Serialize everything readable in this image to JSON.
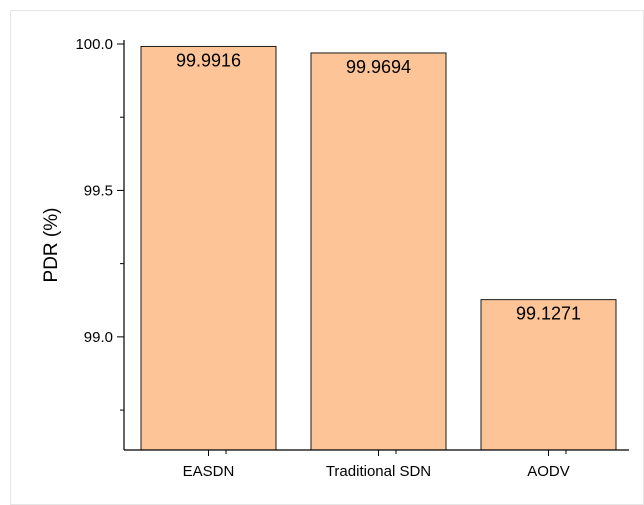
{
  "chart_data": {
    "type": "bar",
    "title": "",
    "xlabel": "",
    "ylabel": "PDR (%)",
    "categories": [
      "EASDN",
      "Traditional SDN",
      "AODV"
    ],
    "values": [
      99.9916,
      99.9694,
      99.1271
    ],
    "data_labels": [
      "99.9916",
      "99.9694",
      "99.1271"
    ],
    "ylim": [
      98.6,
      100.0
    ],
    "yticks": [
      {
        "value": 99.0,
        "label": "99.0"
      },
      {
        "value": 99.5,
        "label": "99.5"
      },
      {
        "value": 100.0,
        "label": "100.0"
      }
    ],
    "minor_yticks": [
      98.75,
      99.25,
      99.75
    ],
    "grid": false,
    "legend": "none",
    "bar_color": "#fdc597",
    "bar_edge_color": "#1a1a1a"
  }
}
